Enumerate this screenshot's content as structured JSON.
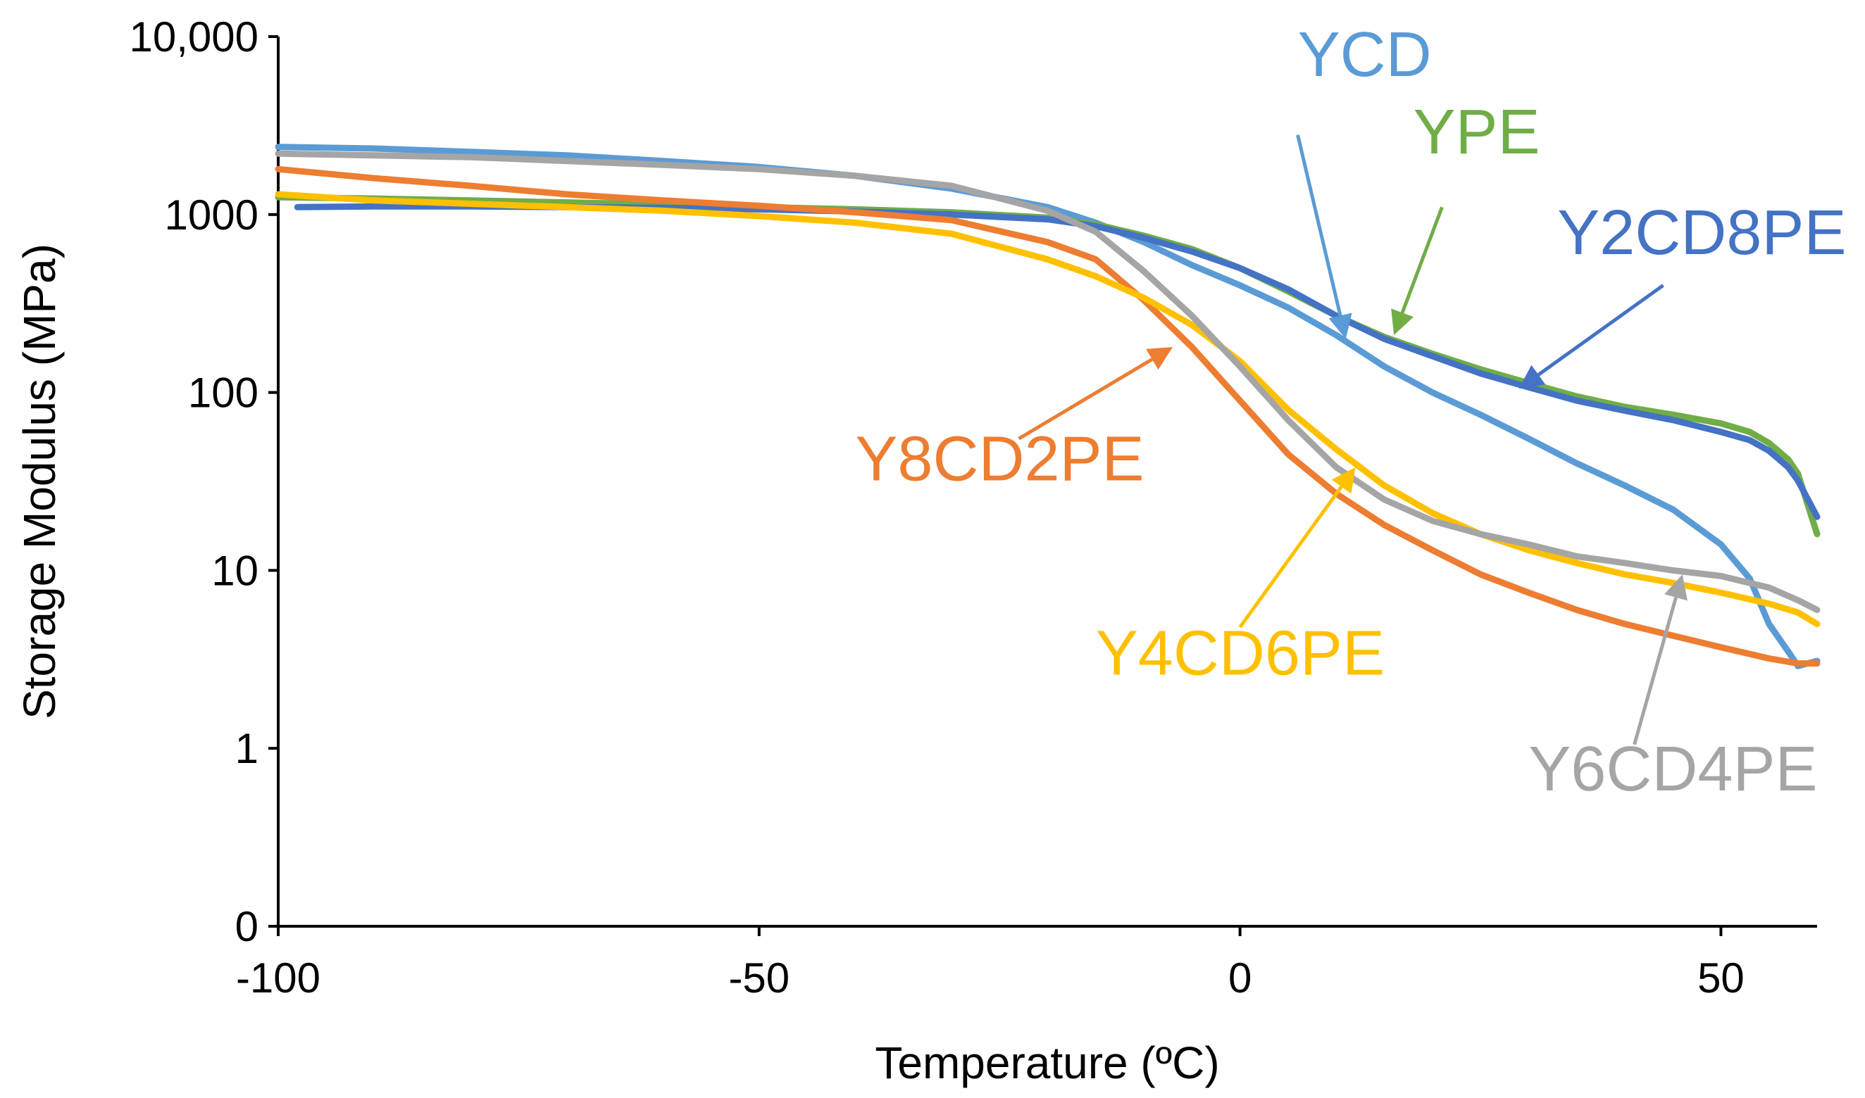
{
  "chart_data": {
    "type": "line",
    "xlabel": "Temperature  (ºC)",
    "ylabel": "Storage Modulus  (MPa)",
    "xlim": [
      -100,
      60
    ],
    "ylim_log": [
      0.1,
      10000
    ],
    "y_scale": "log",
    "x_ticks": [
      -100,
      -50,
      0,
      50
    ],
    "x_tick_labels": [
      "-100",
      "-50",
      "0",
      "50"
    ],
    "y_ticks": [
      0.1,
      1,
      10,
      100,
      1000,
      10000
    ],
    "y_tick_labels": [
      "0",
      "1",
      "10",
      "100",
      "1000",
      "10,000"
    ],
    "series": [
      {
        "name": "YCD",
        "color": "#5b9bd5",
        "x": [
          -100,
          -90,
          -80,
          -70,
          -60,
          -50,
          -40,
          -30,
          -20,
          -15,
          -10,
          -5,
          0,
          5,
          10,
          15,
          20,
          25,
          30,
          35,
          40,
          45,
          50,
          53,
          55,
          57,
          58,
          60
        ],
        "values": [
          2400,
          2350,
          2250,
          2150,
          2000,
          1850,
          1650,
          1400,
          1100,
          900,
          700,
          520,
          400,
          300,
          210,
          140,
          100,
          75,
          55,
          40,
          30,
          22,
          14,
          9,
          5,
          3.5,
          2.9,
          3.1
        ]
      },
      {
        "name": "YPE",
        "color": "#70ad47",
        "x": [
          -100,
          -90,
          -80,
          -70,
          -60,
          -50,
          -40,
          -30,
          -20,
          -15,
          -10,
          -5,
          0,
          5,
          10,
          15,
          20,
          25,
          30,
          35,
          40,
          45,
          50,
          53,
          55,
          57,
          58,
          60
        ],
        "values": [
          1250,
          1230,
          1200,
          1170,
          1140,
          1100,
          1070,
          1030,
          960,
          880,
          760,
          640,
          500,
          370,
          270,
          205,
          165,
          135,
          113,
          95,
          83,
          75,
          67,
          60,
          52,
          42,
          35,
          16
        ]
      },
      {
        "name": "Y2CD8PE",
        "color": "#4472c4",
        "x": [
          -98,
          -90,
          -80,
          -70,
          -60,
          -50,
          -40,
          -30,
          -20,
          -15,
          -10,
          -5,
          0,
          5,
          10,
          15,
          20,
          25,
          30,
          35,
          40,
          45,
          50,
          53,
          55,
          57,
          58,
          60
        ],
        "values": [
          1100,
          1110,
          1110,
          1100,
          1090,
          1070,
          1040,
          1000,
          940,
          860,
          740,
          620,
          500,
          380,
          270,
          200,
          160,
          128,
          107,
          90,
          79,
          70,
          60,
          54,
          47,
          38,
          32,
          20
        ]
      },
      {
        "name": "Y8CD2PE",
        "color": "#ed7d31",
        "x": [
          -100,
          -90,
          -80,
          -70,
          -60,
          -50,
          -40,
          -30,
          -20,
          -15,
          -10,
          -5,
          0,
          5,
          10,
          15,
          20,
          25,
          30,
          35,
          40,
          45,
          50,
          55,
          58,
          60
        ],
        "values": [
          1800,
          1600,
          1450,
          1300,
          1200,
          1120,
          1030,
          930,
          700,
          560,
          330,
          180,
          90,
          45,
          27,
          18,
          13,
          9.5,
          7.5,
          6,
          5,
          4.3,
          3.7,
          3.2,
          3.0,
          3.0
        ]
      },
      {
        "name": "Y4CD6PE",
        "color": "#ffc000",
        "x": [
          -100,
          -90,
          -80,
          -70,
          -60,
          -50,
          -40,
          -30,
          -20,
          -15,
          -10,
          -5,
          0,
          5,
          10,
          15,
          20,
          25,
          30,
          35,
          40,
          45,
          50,
          55,
          58,
          60
        ],
        "values": [
          1300,
          1200,
          1150,
          1100,
          1050,
          980,
          900,
          780,
          560,
          450,
          340,
          240,
          150,
          80,
          48,
          30,
          21,
          16,
          13,
          11,
          9.5,
          8.5,
          7.5,
          6.5,
          5.8,
          5.0
        ]
      },
      {
        "name": "Y6CD4PE",
        "color": "#a5a5a5",
        "x": [
          -100,
          -90,
          -80,
          -70,
          -60,
          -50,
          -40,
          -30,
          -20,
          -15,
          -10,
          -5,
          0,
          5,
          10,
          15,
          20,
          25,
          30,
          35,
          40,
          45,
          50,
          55,
          58,
          60
        ],
        "values": [
          2200,
          2150,
          2100,
          2000,
          1900,
          1800,
          1650,
          1450,
          1050,
          800,
          480,
          270,
          140,
          70,
          38,
          25,
          19,
          16,
          14,
          12,
          11,
          10,
          9.3,
          8,
          6.8,
          6
        ]
      }
    ],
    "annotations": [
      {
        "text": "YCD",
        "color": "#5b9bd5",
        "label_x": 6,
        "label_y": 6000,
        "label_anchor": "start",
        "arrow_from_x": 6,
        "arrow_from_y": 2800,
        "arrow_to_x": 11,
        "arrow_to_y": 200
      },
      {
        "text": "YPE",
        "color": "#70ad47",
        "label_x": 18,
        "label_y": 2200,
        "label_anchor": "start",
        "arrow_from_x": 21,
        "arrow_from_y": 1100,
        "arrow_to_x": 16,
        "arrow_to_y": 210
      },
      {
        "text": "Y2CD8PE",
        "color": "#4472c4",
        "label_x": 33,
        "label_y": 600,
        "label_anchor": "start",
        "arrow_from_x": 44,
        "arrow_from_y": 400,
        "arrow_to_x": 29,
        "arrow_to_y": 105
      },
      {
        "text": "Y8CD2PE",
        "color": "#ed7d31",
        "label_x": -40,
        "label_y": 32,
        "label_anchor": "start",
        "arrow_from_x": -23,
        "arrow_from_y": 55,
        "arrow_to_x": -7,
        "arrow_to_y": 180
      },
      {
        "text": "Y4CD6PE",
        "color": "#ffc000",
        "label_x": -15,
        "label_y": 2.6,
        "label_anchor": "start",
        "arrow_from_x": 0,
        "arrow_from_y": 4.8,
        "arrow_to_x": 12,
        "arrow_to_y": 38
      },
      {
        "text": "Y6CD4PE",
        "color": "#a5a5a5",
        "label_x": 30,
        "label_y": 0.58,
        "label_anchor": "start",
        "arrow_from_x": 41,
        "arrow_from_y": 1.05,
        "arrow_to_x": 46,
        "arrow_to_y": 9.5
      }
    ]
  }
}
